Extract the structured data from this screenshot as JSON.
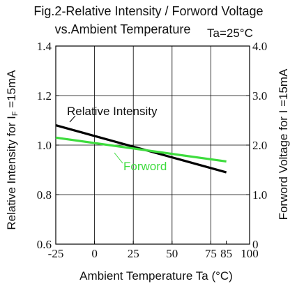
{
  "chart_data": {
    "type": "line",
    "title_line1": "Fig.2-Relative Intensity / Forword Voltage",
    "title_line2": "vs.Ambient Temperature",
    "condition": "Ta=25°C",
    "xlabel": "Ambient Temperature Ta (°C)",
    "ylabel_left": "Relative Intensity  for I",
    "ylabel_left_sub": "F",
    "ylabel_left_tail": " =15mA",
    "ylabel_right": "Forword Voltage  for I  =15mA",
    "xlim": [
      -25,
      100
    ],
    "ylim_left": [
      0.6,
      1.4
    ],
    "ylim_right": [
      0.0,
      4.0
    ],
    "x_ticks": [
      -25,
      0,
      25,
      50,
      75,
      85,
      100
    ],
    "x_tick_labels": [
      "-25",
      "0",
      "25",
      "50",
      "75",
      "85",
      "100"
    ],
    "y_left_ticks": [
      0.6,
      0.8,
      1.0,
      1.2,
      1.4
    ],
    "y_left_tick_labels": [
      "0.6",
      "0.8",
      "1.0",
      "1.2",
      "1.4"
    ],
    "y_right_ticks": [
      0,
      1.0,
      2.0,
      3.0,
      4.0
    ],
    "y_right_tick_labels": [
      "0",
      "1.0",
      "2.0",
      "3.0",
      "4.0"
    ],
    "grid": true,
    "series": [
      {
        "name": "Relative Intensity",
        "color": "#000000",
        "axis": "left",
        "x": [
          -25,
          85
        ],
        "y": [
          1.08,
          0.89
        ]
      },
      {
        "name": "Forword",
        "color": "#3ddc3d",
        "axis": "right",
        "x": [
          -25,
          85
        ],
        "y": [
          2.15,
          1.67
        ]
      }
    ]
  }
}
